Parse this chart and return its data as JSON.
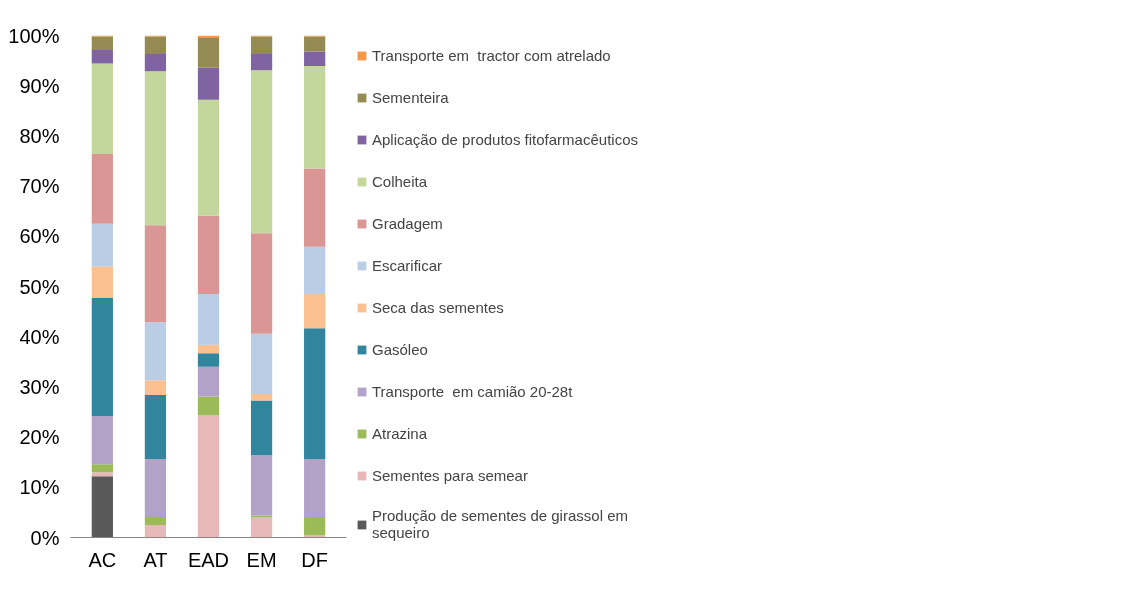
{
  "chart_data": {
    "type": "bar",
    "stacked": true,
    "categories": [
      "AC",
      "AT",
      "EAD",
      "EM",
      "DF"
    ],
    "ylim": [
      0,
      100
    ],
    "yticks": [
      {
        "value": 0,
        "label": "0%"
      },
      {
        "value": 10,
        "label": "10%"
      },
      {
        "value": 20,
        "label": "20%"
      },
      {
        "value": 30,
        "label": "30%"
      },
      {
        "value": 40,
        "label": "40%"
      },
      {
        "value": 50,
        "label": "50%"
      },
      {
        "value": 60,
        "label": "60%"
      },
      {
        "value": 70,
        "label": "70%"
      },
      {
        "value": 80,
        "label": "80%"
      },
      {
        "value": 90,
        "label": "90%"
      },
      {
        "value": 100,
        "label": "100%"
      }
    ],
    "grid": false,
    "legend": "right",
    "series": [
      {
        "name": "Produção de sementes de girassol em sequeiro",
        "color": "#595959",
        "values": [
          12.2,
          0,
          0,
          0,
          0
        ]
      },
      {
        "name": "Sementes para semear",
        "color": "#e6b9b8",
        "values": [
          0.8,
          2.5,
          24.3,
          4.0,
          0.4
        ]
      },
      {
        "name": "Atrazina",
        "color": "#9bbb59",
        "values": [
          1.6,
          1.6,
          3.8,
          0.4,
          3.7
        ]
      },
      {
        "name": "Transporte  em camião 20-28t",
        "color": "#b3a2c7",
        "values": [
          9.6,
          11.5,
          5.9,
          12.0,
          11.5
        ]
      },
      {
        "name": "Gasóleo",
        "color": "#31859c",
        "values": [
          23.5,
          12.8,
          2.7,
          10.9,
          26.1
        ]
      },
      {
        "name": "Seca das sementes",
        "color": "#fac090",
        "values": [
          6.3,
          2.9,
          1.7,
          1.3,
          6.8
        ]
      },
      {
        "name": "Escarificar",
        "color": "#b9cde5",
        "values": [
          8.5,
          11.6,
          10.1,
          12.0,
          9.4
        ]
      },
      {
        "name": "Gradagem",
        "color": "#d99694",
        "values": [
          13.9,
          19.3,
          15.6,
          20.0,
          15.6
        ]
      },
      {
        "name": "Colheita",
        "color": "#c3d69b",
        "values": [
          18.0,
          30.7,
          23.1,
          32.5,
          20.4
        ]
      },
      {
        "name": "Aplicação de produtos fitofarmacêuticos",
        "color": "#8064a2",
        "values": [
          2.7,
          3.4,
          6.4,
          3.2,
          2.9
        ]
      },
      {
        "name": "Sementeira",
        "color": "#948a54",
        "values": [
          2.7,
          3.5,
          5.9,
          3.5,
          3.0
        ]
      },
      {
        "name": "Transporte em  tractor com atrelado",
        "color": "#f79646",
        "values": [
          0.2,
          0.2,
          0.5,
          0.2,
          0.2
        ]
      }
    ]
  }
}
